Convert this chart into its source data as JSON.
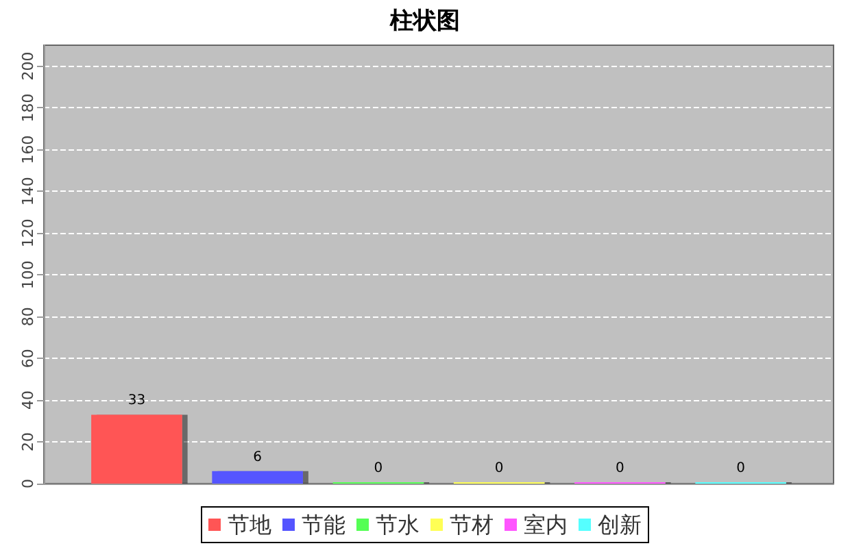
{
  "chart_data": {
    "type": "bar",
    "title": "柱状图",
    "categories": [
      null
    ],
    "series": [
      {
        "name": "节地",
        "color": "#ff5555",
        "values": [
          33
        ]
      },
      {
        "name": "节能",
        "color": "#5555ff",
        "values": [
          6
        ]
      },
      {
        "name": "节水",
        "color": "#55ff55",
        "values": [
          0
        ]
      },
      {
        "name": "节材",
        "color": "#ffff55",
        "values": [
          0
        ]
      },
      {
        "name": "室内",
        "color": "#ff55ff",
        "values": [
          0
        ]
      },
      {
        "name": "创新",
        "color": "#55ffff",
        "values": [
          0
        ]
      }
    ],
    "ylim": [
      0,
      210
    ],
    "yticks": [
      0,
      20,
      40,
      60,
      80,
      100,
      120,
      140,
      160,
      180,
      200
    ],
    "grid": "y",
    "legend": "bottom",
    "data_labels": true
  }
}
